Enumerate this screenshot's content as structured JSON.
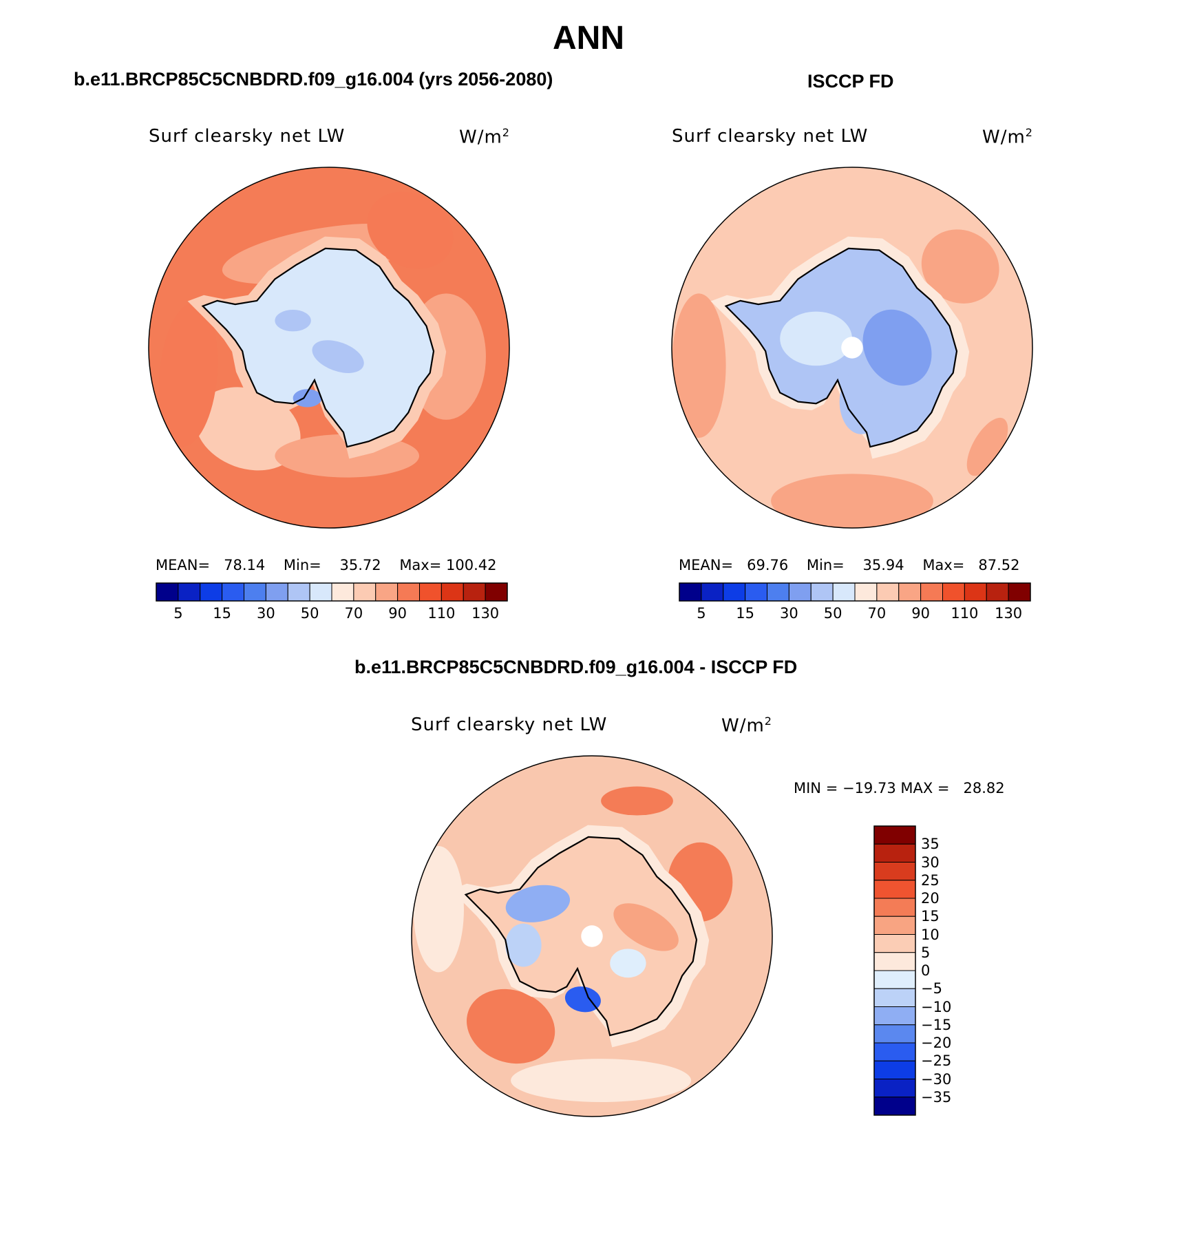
{
  "figure_title": "ANN",
  "colors": {
    "cmap_abs": [
      "#00008b",
      "#0a22c4",
      "#0d3de6",
      "#2a5cf0",
      "#4d7fef",
      "#7f9ff0",
      "#afc5f5",
      "#d8e8fb",
      "#fde9dc",
      "#fccbb3",
      "#f9a585",
      "#f57a55",
      "#f0522c",
      "#dc3516",
      "#b8220f",
      "#800000"
    ],
    "cmap_diff": [
      "#00008b",
      "#0a22c4",
      "#0d3de6",
      "#2a5cf0",
      "#5b88ef",
      "#8faef3",
      "#bcd2f7",
      "#dfeefc",
      "#fde9dc",
      "#fbcdb5",
      "#f8a482",
      "#f47c56",
      "#ef5430",
      "#d93c1e",
      "#b8220f",
      "#800000"
    ],
    "ocean_test": "#f47c56",
    "ocean_ref": "#fccbb3",
    "ocean_diff": "#f9c7ae",
    "land_test": "#d8e8fb",
    "land_ref": "#afc5f5"
  },
  "panels": {
    "test": {
      "title": "b.e11.BRCP85C5CNBDRD.f09_g16.004 (yrs 2056-2080)",
      "variable": "Surf clearsky net LW",
      "units": "W/m",
      "units_sup": "2",
      "mean_label": "MEAN=",
      "mean": "78.14",
      "min_label": "Min=",
      "min": "35.72",
      "max_label": "Max=",
      "max": "100.42"
    },
    "ref": {
      "title": "ISCCP FD",
      "variable": "Surf clearsky net LW",
      "units": "W/m",
      "units_sup": "2",
      "mean_label": "MEAN=",
      "mean": "69.76",
      "min_label": "Min=",
      "min": "35.94",
      "max_label": "Max=",
      "max": "87.52"
    },
    "diff": {
      "title": "b.e11.BRCP85C5CNBDRD.f09_g16.004 - ISCCP FD",
      "variable": "Surf clearsky net LW",
      "units": "W/m",
      "units_sup": "2",
      "minmax_text": "MIN = −19.73 MAX =   28.82"
    }
  },
  "chart_data": [
    {
      "type": "heatmap",
      "projection": "south polar stereographic",
      "title": "b.e11.BRCP85C5CNBDRD.f09_g16.004 (yrs 2056-2080)",
      "variable": "Surf clearsky net LW",
      "units": "W/m2",
      "mean": 78.14,
      "min": 35.72,
      "max": 100.42,
      "colorbar_ticks": [
        "5",
        "15",
        "30",
        "50",
        "70",
        "90",
        "110",
        "130"
      ]
    },
    {
      "type": "heatmap",
      "projection": "south polar stereographic",
      "title": "ISCCP FD",
      "variable": "Surf clearsky net LW",
      "units": "W/m2",
      "mean": 69.76,
      "min": 35.94,
      "max": 87.52,
      "colorbar_ticks": [
        "5",
        "15",
        "30",
        "50",
        "70",
        "90",
        "110",
        "130"
      ]
    },
    {
      "type": "heatmap",
      "projection": "south polar stereographic",
      "title": "b.e11.BRCP85C5CNBDRD.f09_g16.004 - ISCCP FD",
      "variable": "Surf clearsky net LW",
      "units": "W/m2",
      "min": -19.73,
      "max": 28.82,
      "colorbar_ticks": [
        "35",
        "30",
        "25",
        "20",
        "15",
        "10",
        "5",
        "0",
        "−5",
        "−10",
        "−15",
        "−20",
        "−25",
        "−30",
        "−35"
      ]
    }
  ]
}
